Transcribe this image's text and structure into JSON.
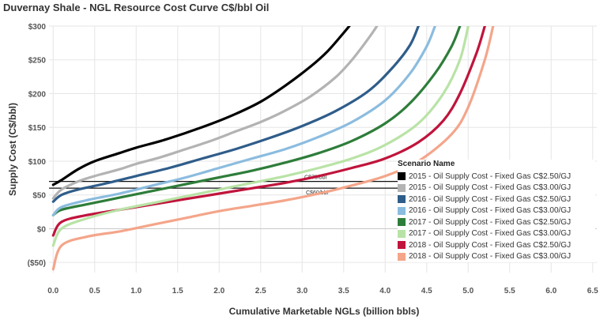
{
  "chart_data": {
    "type": "line",
    "title": "Duvernay Shale - NGL Resource Cost Curve C$/bbl Oil",
    "xlabel": "Cumulative Marketable NGLs (billion bbls)",
    "ylabel": "Supply Cost (C$/bbl)",
    "xlim": [
      -0.05,
      6.55
    ],
    "ylim": [
      -65,
      300
    ],
    "x_ticks": [
      0.0,
      0.5,
      1.0,
      1.5,
      2.0,
      2.5,
      3.0,
      3.5,
      4.0,
      4.5,
      5.0,
      5.5,
      6.0,
      6.5
    ],
    "x_tick_labels": [
      "0.0",
      "0.5",
      "1.0",
      "1.5",
      "2.0",
      "2.5",
      "3.0",
      "3.5",
      "4.0",
      "4.5",
      "5.0",
      "5.5",
      "6.0",
      "6.5"
    ],
    "y_ticks": [
      -50,
      0,
      50,
      100,
      150,
      200,
      250,
      300
    ],
    "y_tick_labels": [
      "($50)",
      "$0",
      "$50",
      "$100",
      "$150",
      "$200",
      "$250",
      "$300"
    ],
    "grid": true,
    "legend_title": "Scenario Name",
    "legend_position": "bottom-right",
    "reference_lines": [
      {
        "label": "C$70/bbl",
        "y": 70
      },
      {
        "label": "C$60/bbl",
        "y": 60
      }
    ],
    "series": [
      {
        "name": "2015 - Oil Supply Cost - Fixed Gas C$2.50/GJ",
        "color": "#000000",
        "x": [
          0.0,
          0.1,
          0.3,
          0.5,
          0.8,
          1.0,
          1.3,
          1.6,
          1.9,
          2.2,
          2.5,
          2.8,
          3.1,
          3.3,
          3.5,
          3.6
        ],
        "y": [
          65,
          72,
          88,
          100,
          112,
          120,
          130,
          142,
          155,
          170,
          188,
          212,
          240,
          262,
          290,
          305
        ]
      },
      {
        "name": "2015 - Oil Supply Cost - Fixed Gas C$3.00/GJ",
        "color": "#b3b3b3",
        "x": [
          0.0,
          0.1,
          0.3,
          0.5,
          0.8,
          1.0,
          1.3,
          1.6,
          1.9,
          2.2,
          2.5,
          2.8,
          3.1,
          3.4,
          3.6,
          3.8,
          3.9
        ],
        "y": [
          45,
          58,
          70,
          78,
          88,
          96,
          106,
          118,
          130,
          144,
          158,
          175,
          196,
          224,
          250,
          282,
          300
        ]
      },
      {
        "name": "2016 - Oil Supply Cost - Fixed Gas C$2.50/GJ",
        "color": "#2f5d8a",
        "x": [
          0.0,
          0.1,
          0.3,
          0.6,
          1.0,
          1.4,
          1.8,
          2.2,
          2.6,
          3.0,
          3.4,
          3.8,
          4.1,
          4.3,
          4.4
        ],
        "y": [
          40,
          50,
          58,
          66,
          78,
          90,
          104,
          118,
          134,
          152,
          174,
          204,
          240,
          272,
          300
        ]
      },
      {
        "name": "2016 - Oil Supply Cost - Fixed Gas C$3.00/GJ",
        "color": "#8bbcdf",
        "x": [
          0.0,
          0.1,
          0.4,
          0.8,
          1.2,
          1.6,
          2.0,
          2.4,
          2.8,
          3.2,
          3.6,
          4.0,
          4.3,
          4.5,
          4.6
        ],
        "y": [
          20,
          32,
          42,
          52,
          64,
          76,
          90,
          104,
          118,
          136,
          158,
          190,
          230,
          270,
          300
        ]
      },
      {
        "name": "2017 - Oil Supply Cost - Fixed Gas C$2.50/GJ",
        "color": "#2e7d3a",
        "x": [
          0.0,
          0.1,
          0.4,
          0.8,
          1.2,
          1.6,
          2.0,
          2.4,
          2.8,
          3.2,
          3.6,
          4.0,
          4.3,
          4.6,
          4.8,
          4.9
        ],
        "y": [
          20,
          28,
          36,
          46,
          56,
          66,
          76,
          86,
          98,
          112,
          130,
          156,
          186,
          230,
          270,
          300
        ]
      },
      {
        "name": "2017 - Oil Supply Cost - Fixed Gas C$3.00/GJ",
        "color": "#b9e3a6",
        "x": [
          0.0,
          0.1,
          0.4,
          0.8,
          1.2,
          1.6,
          2.0,
          2.4,
          2.8,
          3.2,
          3.6,
          4.0,
          4.4,
          4.7,
          4.9,
          5.0
        ],
        "y": [
          -25,
          0,
          15,
          28,
          38,
          48,
          58,
          68,
          78,
          90,
          104,
          124,
          156,
          200,
          250,
          300
        ]
      },
      {
        "name": "2018 - Oil Supply Cost - Fixed Gas C$2.50/GJ",
        "color": "#c0143c",
        "x": [
          0.0,
          0.1,
          0.4,
          0.8,
          1.2,
          1.6,
          2.0,
          2.4,
          2.8,
          3.2,
          3.6,
          4.0,
          4.4,
          4.7,
          4.9,
          5.1,
          5.2
        ],
        "y": [
          -10,
          10,
          20,
          28,
          36,
          44,
          52,
          60,
          68,
          78,
          90,
          104,
          128,
          160,
          200,
          260,
          300
        ]
      },
      {
        "name": "2018 - Oil Supply Cost - Fixed Gas C$3.00/GJ",
        "color": "#f4a58a",
        "x": [
          0.0,
          0.1,
          0.4,
          0.8,
          1.2,
          1.6,
          2.0,
          2.4,
          2.8,
          3.2,
          3.6,
          4.0,
          4.4,
          4.8,
          5.0,
          5.2,
          5.3
        ],
        "y": [
          -60,
          -25,
          -12,
          -4,
          6,
          16,
          26,
          34,
          42,
          52,
          64,
          78,
          100,
          140,
          180,
          250,
          300
        ]
      }
    ]
  }
}
